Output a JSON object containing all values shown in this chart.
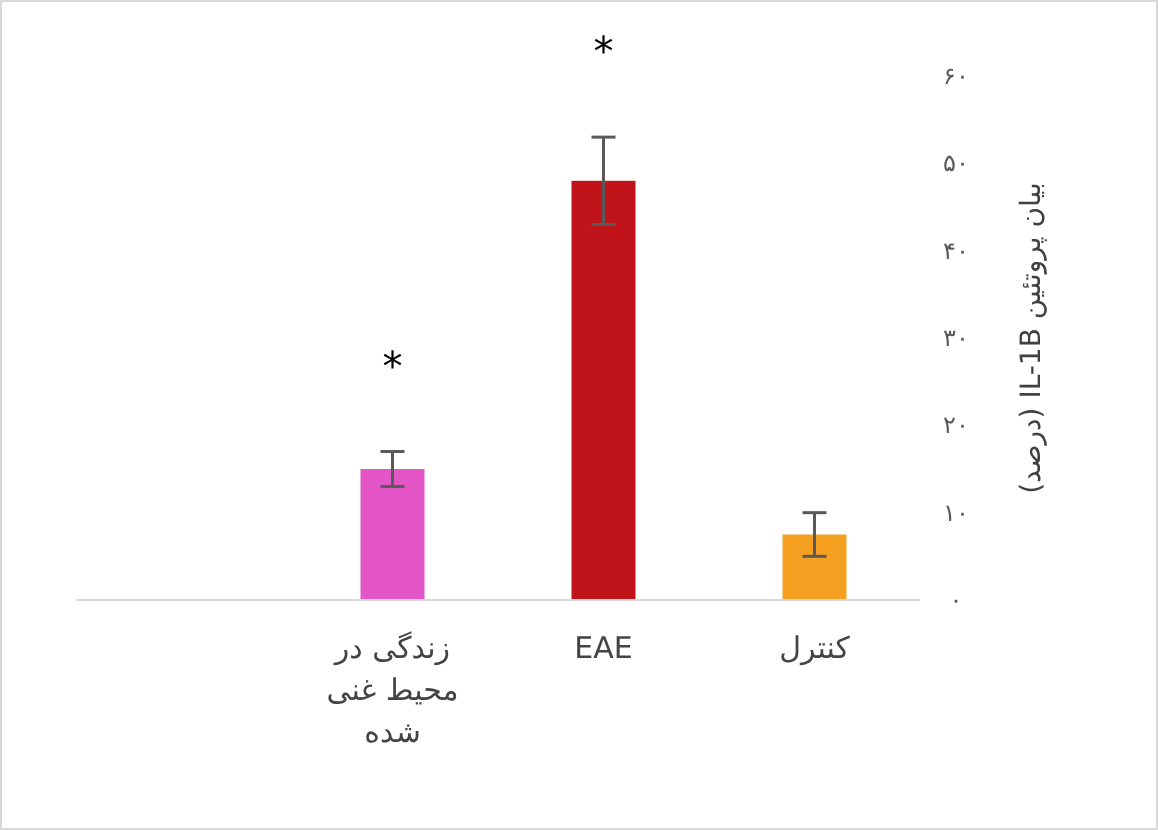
{
  "chart_data": {
    "type": "bar",
    "categories": [
      null,
      "زندگی در محیط غنی شده",
      "EAE",
      "کنترل"
    ],
    "values": [
      null,
      15,
      48,
      7.5
    ],
    "colors": [
      null,
      "#e455c8",
      "#c0141a",
      "#f5a020"
    ],
    "errors": [
      null,
      2,
      5,
      2.5
    ],
    "value_labels": [
      null,
      "*",
      "*",
      null
    ],
    "ylabel": "بیان پروتئین IL-1B (درصد)",
    "ylim": [
      0,
      60
    ],
    "yticks": [
      {
        "value": 0,
        "label": "۰"
      },
      {
        "value": 10,
        "label": "۱۰"
      },
      {
        "value": 20,
        "label": "۲۰"
      },
      {
        "value": 30,
        "label": "۳۰"
      },
      {
        "value": 40,
        "label": "۴۰"
      },
      {
        "value": 50,
        "label": "۵۰"
      },
      {
        "value": 60,
        "label": "۶۰"
      }
    ],
    "grid": false
  }
}
